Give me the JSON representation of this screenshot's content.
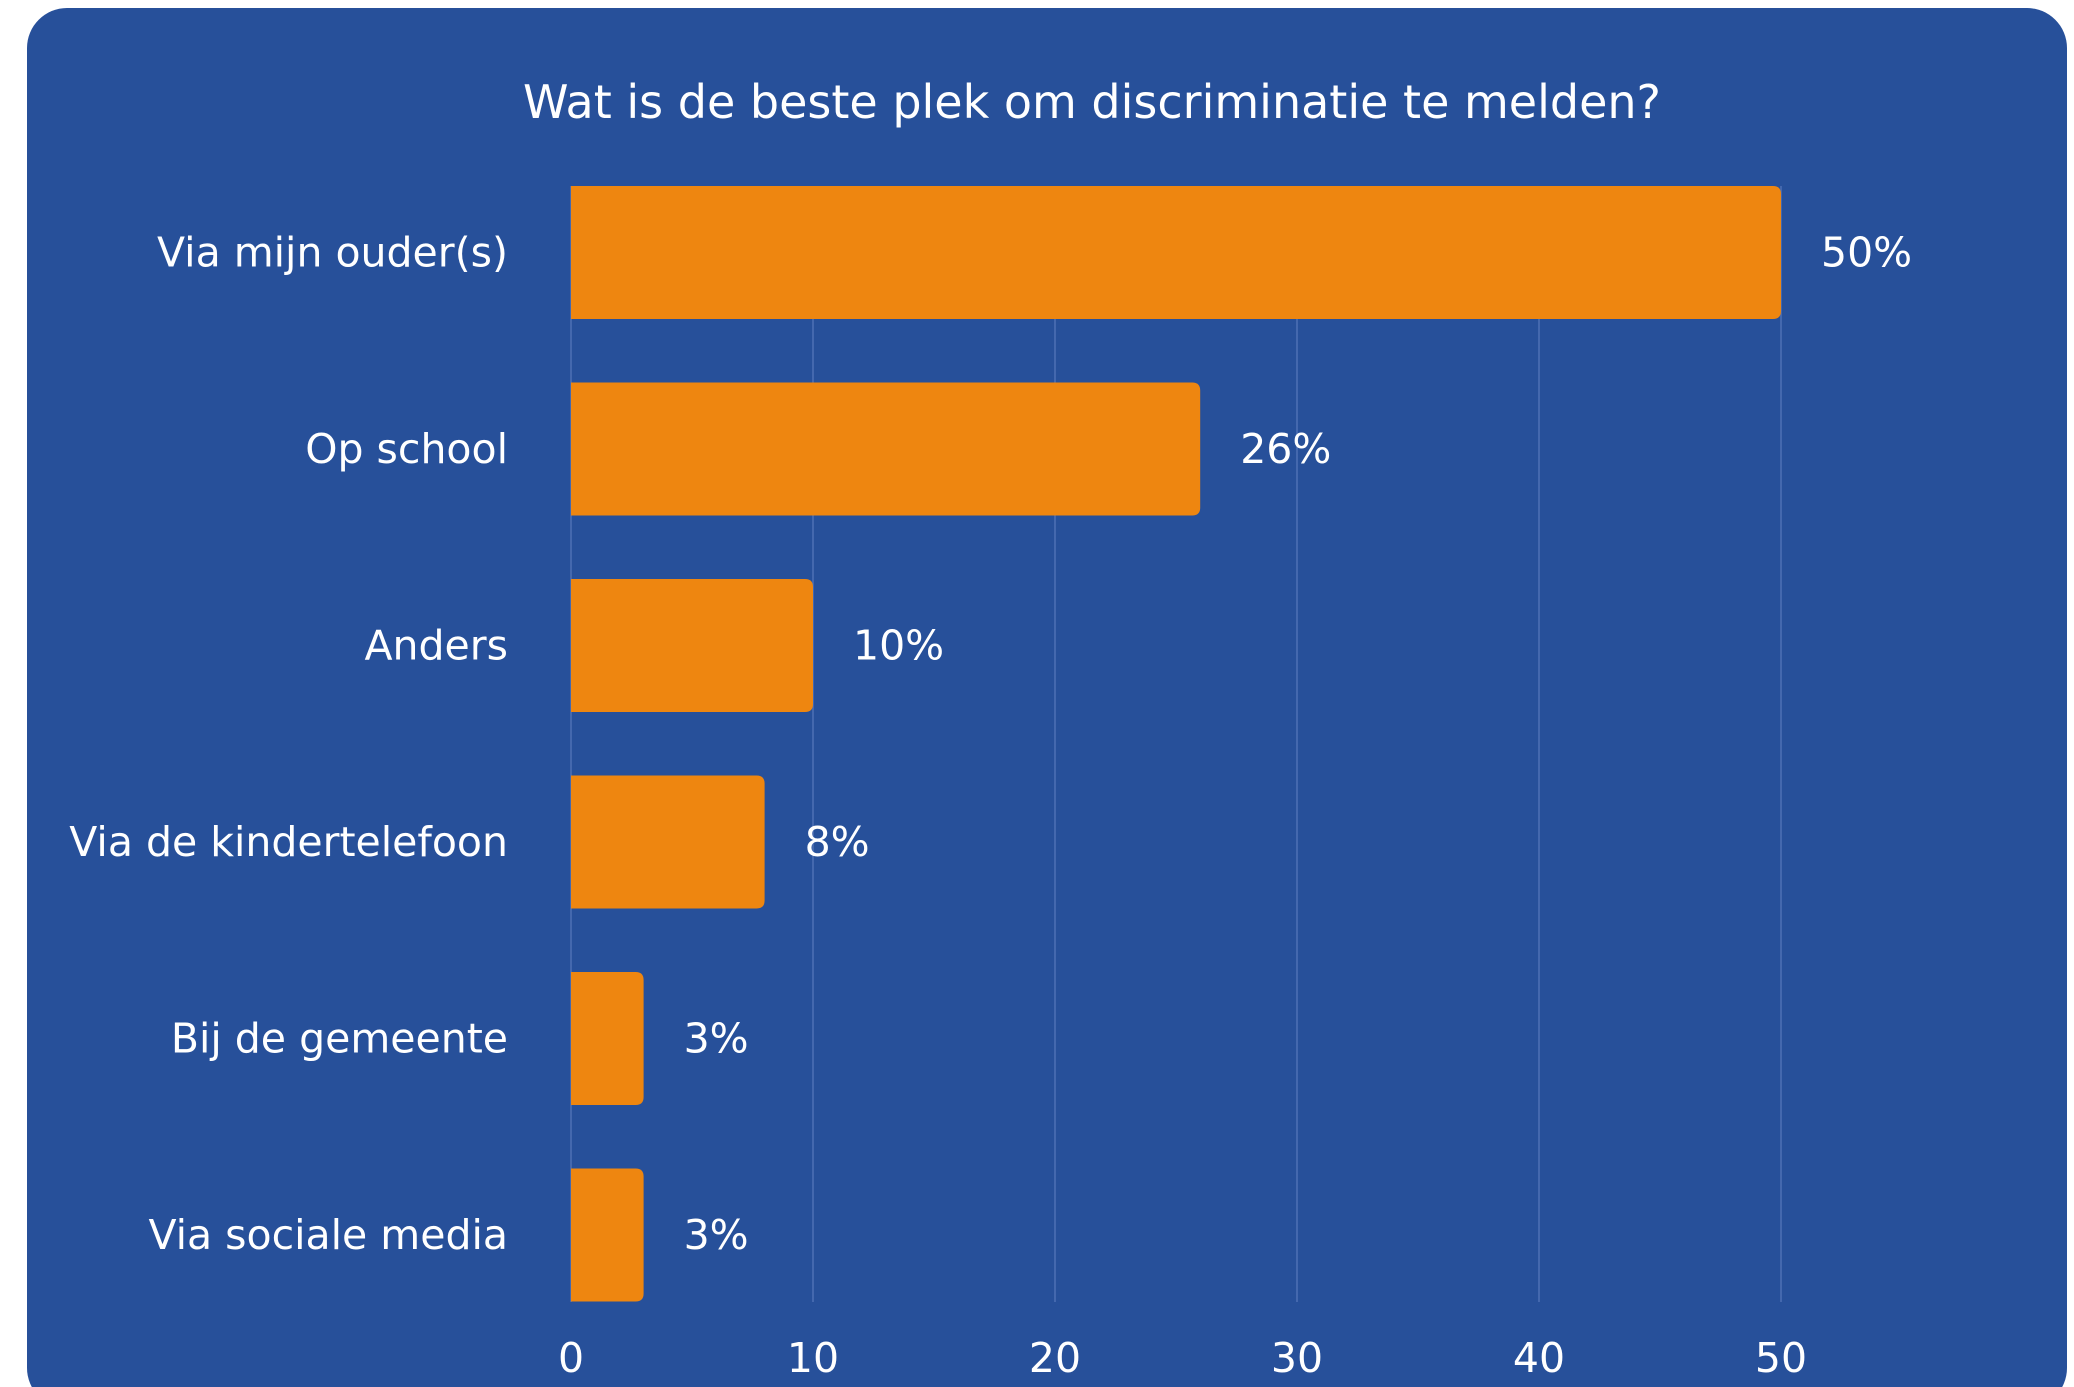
{
  "colors": {
    "background": "#27509a",
    "bar": "#ee8610",
    "grid": "#4f70b5",
    "text": "#ffffff"
  },
  "chart_data": {
    "type": "bar",
    "orientation": "horizontal",
    "title": "Wat is de beste plek om discriminatie te melden?",
    "categories": [
      "Via mijn ouder(s)",
      "Op school",
      "Anders",
      "Via de kindertelefoon",
      "Bij de gemeente",
      "Via sociale media"
    ],
    "values": [
      50,
      26,
      10,
      8,
      3,
      3
    ],
    "value_labels": [
      "50%",
      "26%",
      "10%",
      "8%",
      "3%",
      "3%"
    ],
    "xlim": [
      0,
      55
    ],
    "xticks": [
      0,
      10,
      20,
      30,
      40,
      50
    ],
    "xtick_labels": [
      "0",
      "10",
      "20",
      "30",
      "40",
      "50"
    ],
    "grid": true,
    "legend": "none"
  }
}
